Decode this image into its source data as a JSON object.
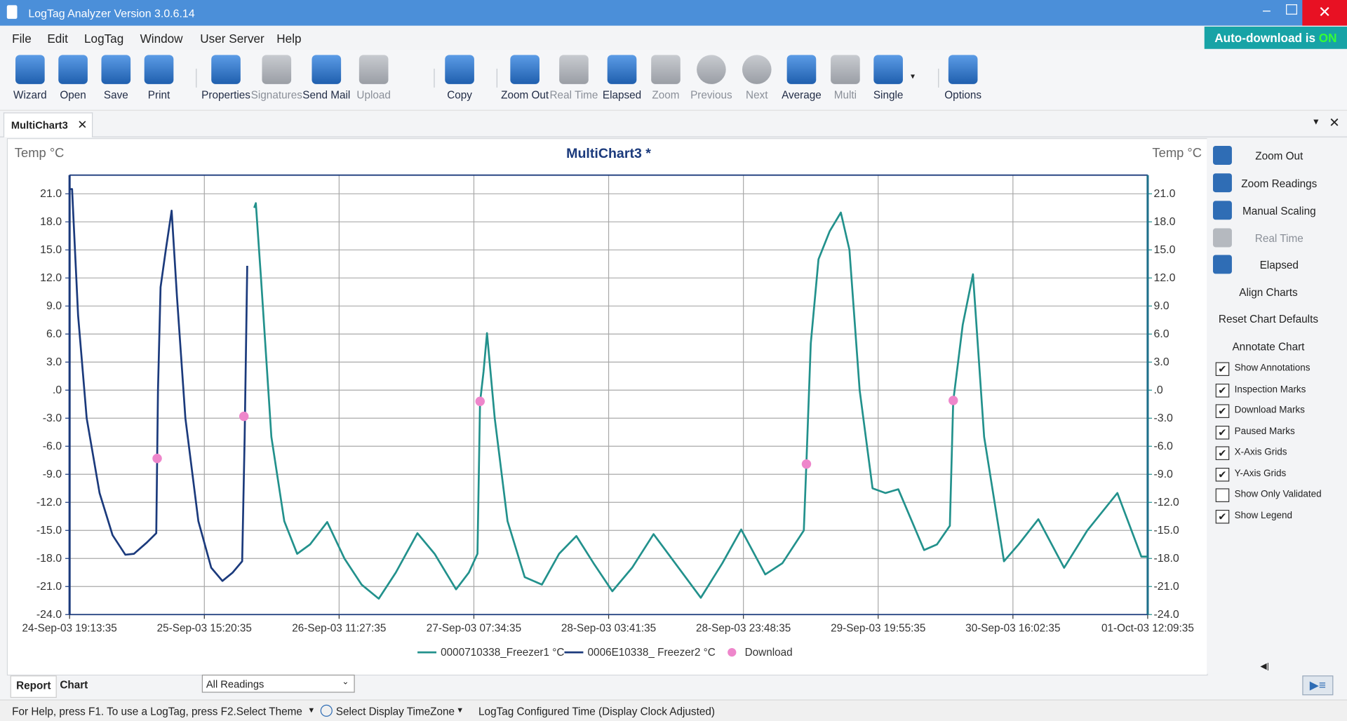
{
  "window": {
    "title": "LogTag Analyzer  Version 3.0.6.14"
  },
  "menu": [
    "File",
    "Edit",
    "LogTag",
    "Window",
    "User Server",
    "Help"
  ],
  "auto_download": {
    "label": "Auto-download is",
    "state": "ON"
  },
  "toolbar": [
    {
      "label": "Wizard",
      "enabled": true
    },
    {
      "label": "Open",
      "enabled": true
    },
    {
      "label": "Save",
      "enabled": true
    },
    {
      "label": "Print",
      "enabled": true
    },
    {
      "label": "Properties",
      "enabled": true
    },
    {
      "label": "Signatures",
      "enabled": false
    },
    {
      "label": "Send Mail",
      "enabled": true
    },
    {
      "label": "Upload",
      "enabled": false
    },
    {
      "label": "Copy",
      "enabled": true
    },
    {
      "label": "Zoom Out",
      "enabled": true
    },
    {
      "label": "Real Time",
      "enabled": false
    },
    {
      "label": "Elapsed",
      "enabled": true
    },
    {
      "label": "Zoom",
      "enabled": false
    },
    {
      "label": "Previous",
      "enabled": false
    },
    {
      "label": "Next",
      "enabled": false
    },
    {
      "label": "Average",
      "enabled": true
    },
    {
      "label": "Multi",
      "enabled": false
    },
    {
      "label": "Single",
      "enabled": true
    },
    {
      "label": "Options",
      "enabled": true
    }
  ],
  "tab": "MultiChart3",
  "side_panel": {
    "buttons": [
      {
        "label": "Zoom Out",
        "enabled": true
      },
      {
        "label": "Zoom Readings",
        "enabled": true
      },
      {
        "label": "Manual Scaling",
        "enabled": true
      },
      {
        "label": "Real Time",
        "enabled": false
      },
      {
        "label": "Elapsed",
        "enabled": true
      },
      {
        "label": "Align Charts",
        "enabled": true
      },
      {
        "label": "Reset Chart Defaults",
        "enabled": true
      },
      {
        "label": "Annotate Chart",
        "enabled": true
      }
    ],
    "checkboxes": [
      {
        "label": "Show Annotations",
        "checked": true
      },
      {
        "label": "Inspection Marks",
        "checked": true
      },
      {
        "label": "Download Marks",
        "checked": true
      },
      {
        "label": "Paused Marks",
        "checked": true
      },
      {
        "label": "X-Axis Grids",
        "checked": true
      },
      {
        "label": "Y-Axis Grids",
        "checked": true
      },
      {
        "label": "Show Only Validated",
        "checked": false
      },
      {
        "label": "Show Legend",
        "checked": true
      }
    ]
  },
  "bottom_tabs": [
    "Report",
    "Chart"
  ],
  "readings_filter": "All Readings",
  "status_bar": {
    "help": "For Help, press F1. To use a LogTag, press F2.",
    "theme": "Select Theme",
    "timezone": "Select Display TimeZone",
    "time_mode": "LogTag Configured Time (Display Clock Adjusted)"
  },
  "chart_data": {
    "type": "line",
    "title": "MultiChart3 *",
    "ylabel": "Temp °C",
    "y2label": "Temp °C",
    "xlim": [
      "24-Sep-03 19:13:35",
      "01-Oct-03 12:09:35"
    ],
    "xticks": [
      "24-Sep-03 19:13:35",
      "25-Sep-03 15:20:35",
      "26-Sep-03 11:27:35",
      "27-Sep-03 07:34:35",
      "28-Sep-03 03:41:35",
      "28-Sep-03 23:48:35",
      "29-Sep-03 19:55:35",
      "30-Sep-03 16:02:35",
      "01-Oct-03 12:09:35"
    ],
    "ylim": [
      -24,
      23
    ],
    "yticks": [
      {
        "value": 21,
        "label": "21.0"
      },
      {
        "value": 18,
        "label": "18.0"
      },
      {
        "value": 15,
        "label": "15.0"
      },
      {
        "value": 12,
        "label": "12.0"
      },
      {
        "value": 9,
        "label": "9.0"
      },
      {
        "value": 6,
        "label": "6.0"
      },
      {
        "value": 3,
        "label": "3.0"
      },
      {
        "value": 0,
        "label": ".0"
      },
      {
        "value": -3,
        "label": "-3.0"
      },
      {
        "value": -6,
        "label": "-6.0"
      },
      {
        "value": -9,
        "label": "-9.0"
      },
      {
        "value": -12,
        "label": "-12.0"
      },
      {
        "value": -15,
        "label": "-15.0"
      },
      {
        "value": -18,
        "label": "-18.0"
      },
      {
        "value": -21,
        "label": "-21.0"
      },
      {
        "value": -24,
        "label": "-24.0"
      }
    ],
    "xgrid": true,
    "ygrid": true,
    "legend": "bottom",
    "series": [
      {
        "name": "0000710338_Freezer1 °C",
        "color": "#22918c",
        "style": "line",
        "x": [
          "25-Sep-03 22:47",
          "25-Sep-03 23:02",
          "25-Sep-03 23:48",
          "26-Sep-03 01:21",
          "26-Sep-03 03:16",
          "26-Sep-03 05:12",
          "26-Sep-03 07:07",
          "26-Sep-03 09:41",
          "26-Sep-03 12:15",
          "26-Sep-03 14:49",
          "26-Sep-03 17:23",
          "26-Sep-03 19:56",
          "26-Sep-03 23:09",
          "27-Sep-03 01:43",
          "27-Sep-03 04:55",
          "27-Sep-03 06:50",
          "27-Sep-03 08:07",
          "27-Sep-03 08:30",
          "27-Sep-03 09:01",
          "27-Sep-03 09:32",
          "27-Sep-03 10:41",
          "27-Sep-03 12:36",
          "27-Sep-03 15:10",
          "27-Sep-03 17:44",
          "27-Sep-03 20:18",
          "27-Sep-03 22:52",
          "28-Sep-03 01:26",
          "28-Sep-03 04:15",
          "28-Sep-03 07:12",
          "28-Sep-03 10:24",
          "28-Sep-03 13:37",
          "28-Sep-03 17:27",
          "28-Sep-03 20:40",
          "28-Sep-03 23:29",
          "29-Sep-03 03:04",
          "29-Sep-03 05:38",
          "29-Sep-03 08:50",
          "29-Sep-03 09:13",
          "29-Sep-03 09:52",
          "29-Sep-03 11:01",
          "29-Sep-03 12:41",
          "29-Sep-03 14:21",
          "29-Sep-03 15:38",
          "29-Sep-03 17:10",
          "29-Sep-03 19:05",
          "29-Sep-03 21:01",
          "29-Sep-03 22:56",
          "30-Sep-03 02:47",
          "30-Sep-03 04:42",
          "30-Sep-03 06:38",
          "30-Sep-03 07:08",
          "30-Sep-03 08:33",
          "30-Sep-03 10:05",
          "30-Sep-03 11:45",
          "30-Sep-03 14:42",
          "30-Sep-03 16:53",
          "30-Sep-03 19:50",
          "30-Sep-03 23:41",
          "01-Oct-03 03:09",
          "01-Oct-03 07:38",
          "01-Oct-03 11:13",
          "01-Oct-03 12:07"
        ],
        "values": [
          19.5,
          20,
          12,
          -5,
          -14,
          -17.5,
          -16.5,
          -14.1,
          -18,
          -20.8,
          -22.3,
          -19.5,
          -15.3,
          -17.5,
          -21.3,
          -19.5,
          -17.5,
          -1.3,
          2,
          6.1,
          -3,
          -14,
          -20,
          -20.8,
          -17.5,
          -15.6,
          -18.5,
          -21.5,
          -19,
          -15.4,
          -18.5,
          -22.2,
          -18.5,
          -14.9,
          -19.7,
          -18.5,
          -15,
          -7.8,
          5,
          14,
          17,
          19,
          15,
          0,
          -10.5,
          -11,
          -10.6,
          -17.1,
          -16.5,
          -14.5,
          -1.2,
          7,
          12.4,
          -5,
          -18.3,
          -16.5,
          -13.8,
          -19,
          -15,
          -11,
          -17.8,
          -17.8
        ]
      },
      {
        "name": "0006E10338_ Freezer2 °C",
        "color": "#1b3a7c",
        "style": "line",
        "x": [
          "24-Sep-03 19:13",
          "24-Sep-03 19:36",
          "24-Sep-03 20:30",
          "24-Sep-03 21:47",
          "24-Sep-03 23:42",
          "25-Sep-03 01:38",
          "25-Sep-03 03:33",
          "25-Sep-03 04:50",
          "25-Sep-03 06:45",
          "25-Sep-03 08:10",
          "25-Sep-03 08:25",
          "25-Sep-03 08:48",
          "25-Sep-03 09:35",
          "25-Sep-03 10:28",
          "25-Sep-03 11:15",
          "25-Sep-03 12:31",
          "25-Sep-03 14:27",
          "25-Sep-03 16:22",
          "25-Sep-03 18:02",
          "25-Sep-03 19:35",
          "25-Sep-03 20:59",
          "25-Sep-03 21:22",
          "25-Sep-03 21:45"
        ],
        "values": [
          21.5,
          21.5,
          8,
          -3,
          -11,
          -15.5,
          -17.6,
          -17.5,
          -16.3,
          -15.3,
          0,
          11,
          15,
          19.2,
          10,
          -3,
          -14,
          -19,
          -20.4,
          -19.5,
          -18.3,
          -5,
          13.3
        ]
      },
      {
        "name": "Download",
        "color": "#ee86cb",
        "style": "marker",
        "x": [
          "25-Sep-03 08:18",
          "25-Sep-03 21:15",
          "27-Sep-03 08:30",
          "29-Sep-03 09:13",
          "30-Sep-03 07:08"
        ],
        "values": [
          -7.3,
          -2.8,
          -1.2,
          -7.9,
          -1.1
        ]
      }
    ]
  }
}
